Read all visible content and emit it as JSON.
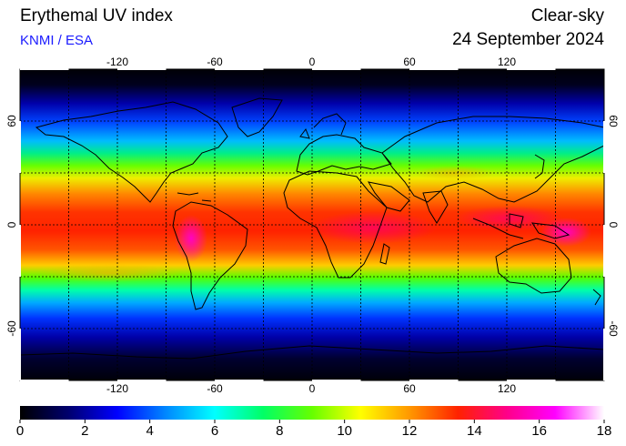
{
  "header": {
    "title": "Erythemal UV index",
    "credit": "KNMI / ESA",
    "mode": "Clear-sky",
    "date": "24 September 2024"
  },
  "map": {
    "lon_labels": [
      "-120",
      "-60",
      "0",
      "60",
      "120"
    ],
    "lat_labels": [
      "60",
      "0",
      "-60"
    ],
    "lon_values": [
      -120,
      -60,
      0,
      60,
      120
    ],
    "lat_values": [
      60,
      0,
      -60
    ],
    "lon_range": [
      -180,
      180
    ],
    "lat_range": [
      -90,
      90
    ],
    "grid": "dotted, 30 degree spacing",
    "coastlines": true
  },
  "colorbar": {
    "min": 0,
    "max": 18,
    "labels": [
      "0",
      "2",
      "4",
      "6",
      "8",
      "10",
      "12",
      "14",
      "16",
      "18"
    ],
    "stops": [
      "#000000",
      "#00006e",
      "#0000ff",
      "#0088ff",
      "#00ffff",
      "#00ff66",
      "#66ff00",
      "#ffff00",
      "#ff9900",
      "#ff2200",
      "#ff0088",
      "#ff00ff",
      "#ffffff"
    ]
  }
}
